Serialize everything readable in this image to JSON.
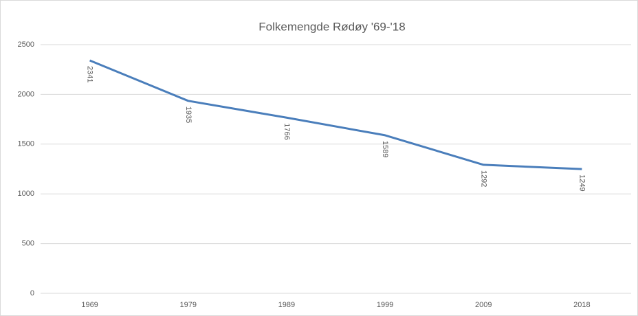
{
  "chart_data": {
    "type": "line",
    "title": "Folkemengde Rødøy '69-'18",
    "categories": [
      "1969",
      "1979",
      "1989",
      "1999",
      "2009",
      "2018"
    ],
    "values": [
      2341,
      1935,
      1766,
      1589,
      1292,
      1249
    ],
    "color": "#4a7ebb",
    "ylim": [
      0,
      2500
    ],
    "yticks": [
      0,
      500,
      1000,
      1500,
      2000,
      2500
    ],
    "grid": true
  }
}
